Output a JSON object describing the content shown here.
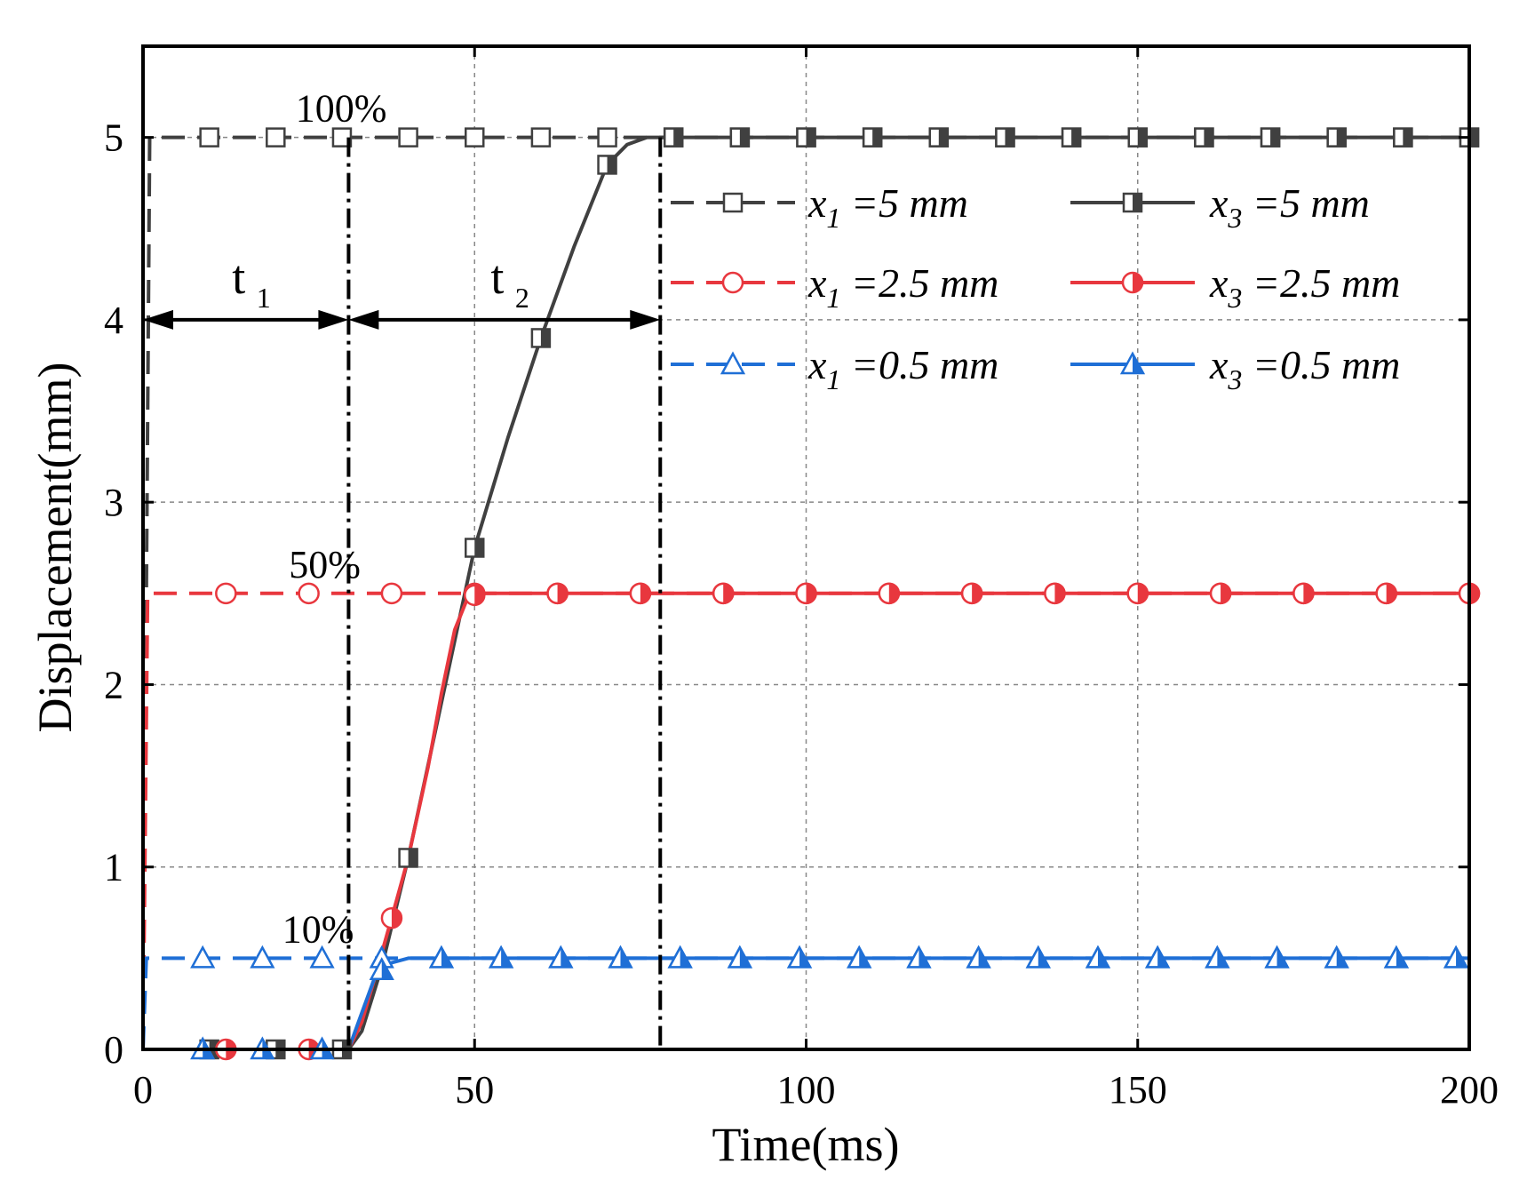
{
  "chart_data": {
    "type": "line",
    "xlabel": "Time(ms)",
    "ylabel": "Displacement(mm)",
    "xlim": [
      0,
      200
    ],
    "ylim": [
      0,
      5.5
    ],
    "xticks": [
      0,
      50,
      100,
      150,
      200
    ],
    "yticks": [
      0,
      1,
      2,
      3,
      4,
      5
    ],
    "grid": true,
    "legend_position": "top-right",
    "annotations": [
      {
        "text": "100%",
        "x": 23,
        "y": 5.0
      },
      {
        "text": "50%",
        "x": 22,
        "y": 2.5
      },
      {
        "text": "10%",
        "x": 21,
        "y": 0.5
      }
    ],
    "interval_markers": {
      "boundaries": [
        31,
        78
      ],
      "arrow_y": 4.0,
      "labels": [
        {
          "main": "t",
          "sub": "1"
        },
        {
          "main": "t",
          "sub": "2"
        }
      ]
    },
    "series": [
      {
        "name": "x1 =5 mm",
        "var": "x",
        "sub": "1",
        "value_text": " =5 mm",
        "color": "#404040",
        "style": "dashed",
        "marker": "open-square",
        "points": [
          [
            0,
            0
          ],
          [
            1,
            5
          ],
          [
            200,
            5
          ]
        ],
        "marker_x": [
          10,
          20,
          30,
          40,
          50,
          60,
          70,
          80,
          90,
          100,
          110,
          120,
          130,
          140,
          150,
          160,
          170,
          180,
          190,
          200
        ]
      },
      {
        "name": "x1 =2.5 mm",
        "var": "x",
        "sub": "1",
        "value_text": " =2.5 mm",
        "color": "#e8373e",
        "style": "dashed",
        "marker": "open-circle",
        "points": [
          [
            0,
            0
          ],
          [
            0.7,
            2.5
          ],
          [
            200,
            2.5
          ]
        ],
        "marker_x": [
          12.5,
          25,
          37.5,
          50,
          62.5,
          75,
          87.5,
          100,
          112.5,
          125,
          137.5,
          150,
          162.5,
          175,
          187.5,
          200
        ]
      },
      {
        "name": "x1 =0.5 mm",
        "var": "x",
        "sub": "1",
        "value_text": " =0.5 mm",
        "color": "#1f6fd6",
        "style": "dashed",
        "marker": "open-triangle",
        "points": [
          [
            0,
            0
          ],
          [
            0.5,
            0.5
          ],
          [
            200,
            0.5
          ]
        ],
        "marker_x": [
          9,
          18,
          27,
          36,
          45,
          54,
          63,
          72,
          81,
          90,
          99,
          108,
          117,
          126,
          135,
          144,
          153,
          162,
          171,
          180,
          189,
          198
        ]
      },
      {
        "name": "x3 =5 mm",
        "var": "x",
        "sub": "3",
        "value_text": " =5 mm",
        "color": "#404040",
        "style": "solid",
        "marker": "half-square",
        "points": [
          [
            0,
            0
          ],
          [
            31,
            0
          ],
          [
            33,
            0.1
          ],
          [
            36,
            0.45
          ],
          [
            40,
            1.05
          ],
          [
            45,
            1.9
          ],
          [
            50,
            2.75
          ],
          [
            55,
            3.35
          ],
          [
            60,
            3.9
          ],
          [
            65,
            4.4
          ],
          [
            70,
            4.85
          ],
          [
            73,
            4.96
          ],
          [
            76,
            5
          ],
          [
            200,
            5
          ]
        ],
        "marker_x": [
          10,
          20,
          30,
          40,
          50,
          60,
          70,
          80,
          90,
          100,
          110,
          120,
          130,
          140,
          150,
          160,
          170,
          180,
          190,
          200
        ]
      },
      {
        "name": "x3 =2.5 mm",
        "var": "x",
        "sub": "3",
        "value_text": " =2.5 mm",
        "color": "#e8373e",
        "style": "solid",
        "marker": "half-circle",
        "points": [
          [
            0,
            0
          ],
          [
            31,
            0
          ],
          [
            33,
            0.15
          ],
          [
            35,
            0.4
          ],
          [
            37.5,
            0.72
          ],
          [
            40,
            1.05
          ],
          [
            43,
            1.55
          ],
          [
            45,
            1.95
          ],
          [
            47,
            2.3
          ],
          [
            49,
            2.48
          ],
          [
            51,
            2.5
          ],
          [
            200,
            2.5
          ]
        ],
        "marker_x": [
          12.5,
          25,
          37.5,
          50,
          62.5,
          75,
          87.5,
          100,
          112.5,
          125,
          137.5,
          150,
          162.5,
          175,
          187.5,
          200
        ]
      },
      {
        "name": "x3 =0.5 mm",
        "var": "x",
        "sub": "3",
        "value_text": " =0.5 mm",
        "color": "#1f6fd6",
        "style": "solid",
        "marker": "half-triangle",
        "points": [
          [
            0,
            0
          ],
          [
            31,
            0
          ],
          [
            33,
            0.2
          ],
          [
            35,
            0.4
          ],
          [
            37,
            0.47
          ],
          [
            40,
            0.5
          ],
          [
            200,
            0.5
          ]
        ],
        "marker_x": [
          9,
          18,
          27,
          36,
          45,
          54,
          63,
          72,
          81,
          90,
          99,
          108,
          117,
          126,
          135,
          144,
          153,
          162,
          171,
          180,
          189,
          198
        ]
      }
    ]
  }
}
